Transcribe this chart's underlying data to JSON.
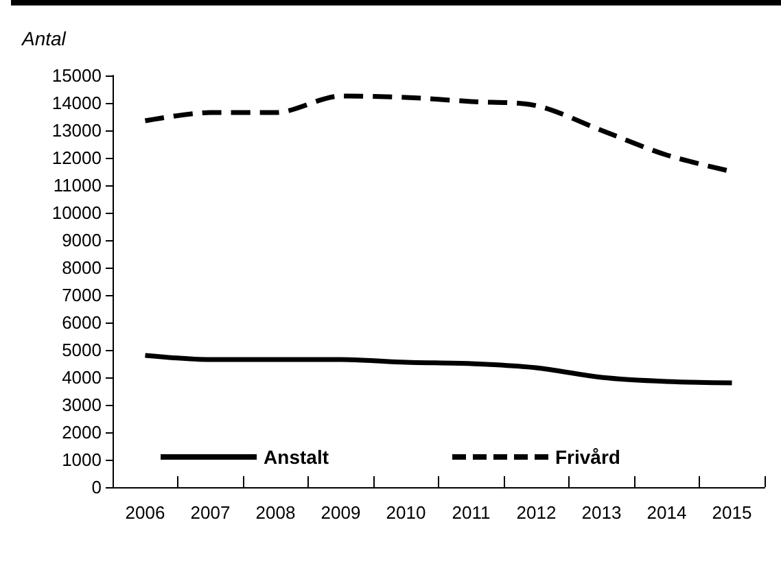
{
  "chart_data": {
    "type": "line",
    "ylabel": "Antal",
    "categories": [
      "2006",
      "2007",
      "2008",
      "2009",
      "2010",
      "2011",
      "2012",
      "2013",
      "2014",
      "2015"
    ],
    "series": [
      {
        "name": "Anstalt",
        "color": "#000000",
        "line_style": "solid",
        "values": [
          4800,
          4650,
          4650,
          4650,
          4550,
          4500,
          4350,
          4000,
          3850,
          3800
        ]
      },
      {
        "name": "Frivård",
        "color": "#000000",
        "line_style": "dashed",
        "values": [
          13350,
          13650,
          13650,
          14250,
          14200,
          14050,
          13900,
          13000,
          12100,
          11500
        ]
      }
    ],
    "ylim": [
      0,
      15000
    ],
    "yticks": [
      0,
      1000,
      2000,
      3000,
      4000,
      5000,
      6000,
      7000,
      8000,
      9000,
      10000,
      11000,
      12000,
      13000,
      14000,
      15000
    ],
    "grid": false,
    "legend": "bottom",
    "marker": "none"
  }
}
